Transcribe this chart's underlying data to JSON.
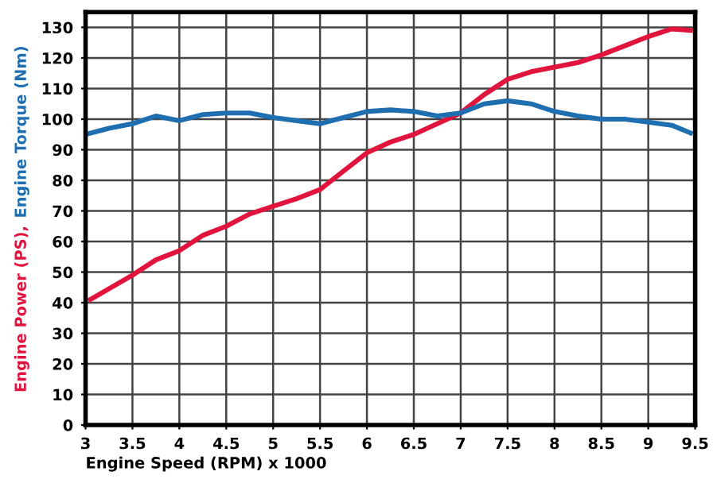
{
  "chart_data": {
    "type": "line",
    "xlabel": "Engine Speed (RPM) x 1000",
    "xlim": [
      3,
      9.5
    ],
    "xticks": [
      3,
      3.5,
      4,
      4.5,
      5,
      5.5,
      6,
      6.5,
      7,
      7.5,
      8,
      8.5,
      9,
      9.5
    ],
    "ylim": [
      0,
      135
    ],
    "yticks": [
      0,
      10,
      20,
      30,
      40,
      50,
      60,
      70,
      80,
      90,
      100,
      110,
      120,
      130
    ],
    "grid": true,
    "marker": "none",
    "line_style": "solid",
    "series": [
      {
        "name": "Engine Power (PS),",
        "color": "#e0143c",
        "x": [
          3.05,
          3.5,
          3.75,
          4,
          4.25,
          4.5,
          4.75,
          5,
          5.25,
          5.5,
          5.75,
          6,
          6.25,
          6.5,
          6.75,
          7,
          7.25,
          7.5,
          7.75,
          8,
          8.25,
          8.5,
          8.75,
          9,
          9.25,
          9.45
        ],
        "values": [
          41,
          49,
          54,
          57,
          62,
          65,
          69,
          71.5,
          74,
          77,
          83,
          89,
          92.5,
          95,
          98.5,
          102,
          108,
          113,
          115.5,
          117,
          118.5,
          121,
          124,
          127,
          129.5,
          129
        ]
      },
      {
        "name": "Engine Torque (Nm)",
        "color": "#1f6fb0",
        "x": [
          3,
          3.25,
          3.5,
          3.75,
          4,
          4.25,
          4.5,
          4.75,
          5,
          5.25,
          5.5,
          5.75,
          6,
          6.25,
          6.5,
          6.75,
          7,
          7.25,
          7.5,
          7.75,
          8,
          8.25,
          8.5,
          8.75,
          9,
          9.25,
          9.45
        ],
        "values": [
          95,
          97,
          98.5,
          101,
          99.5,
          101.5,
          102,
          102,
          100.5,
          99.5,
          98.5,
          100.5,
          102.5,
          103,
          102.5,
          101,
          102,
          105,
          106,
          105,
          102.5,
          101,
          100,
          100,
          99,
          98,
          95.5
        ]
      }
    ]
  }
}
